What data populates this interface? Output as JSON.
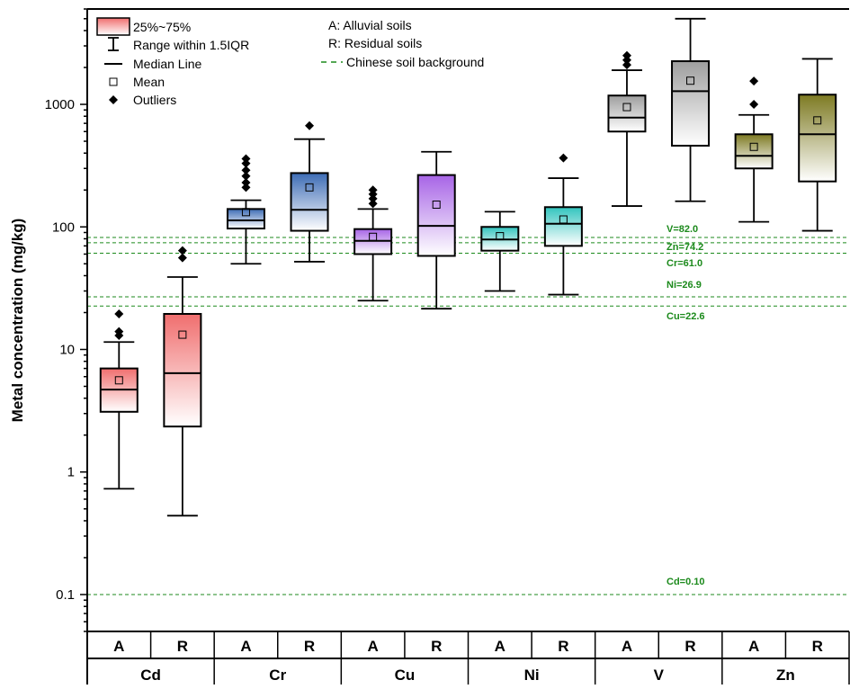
{
  "chart_data": {
    "type": "boxplot",
    "y_scale": "log",
    "ylim": [
      0.05,
      6000
    ],
    "ylabel": "Metal concentration (mg/kg)",
    "y_ticks": [
      {
        "value": 0.1,
        "label": "0.1"
      },
      {
        "value": 1,
        "label": "1"
      },
      {
        "value": 10,
        "label": "10"
      },
      {
        "value": 100,
        "label": "100"
      },
      {
        "value": 1000,
        "label": "1000"
      }
    ],
    "legend": {
      "items": [
        {
          "kind": "box",
          "label": "25%~75%"
        },
        {
          "kind": "whisker",
          "label": "Range within 1.5IQR"
        },
        {
          "kind": "median",
          "label": "Median Line"
        },
        {
          "kind": "mean",
          "label": "Mean"
        },
        {
          "kind": "outlier",
          "label": "Outliers"
        }
      ],
      "notes": [
        {
          "kind": "text",
          "label": "A: Alluvial soils"
        },
        {
          "kind": "text",
          "label": "R: Residual soils"
        },
        {
          "kind": "dashed",
          "label": "Chinese soil background"
        }
      ]
    },
    "groups": [
      {
        "metal": "Cd",
        "color": "#f06e6e",
        "boxes": [
          {
            "soil": "A",
            "min": 0.73,
            "q1": 3.1,
            "median": 4.7,
            "q3": 7.0,
            "max": 11.5,
            "mean": 5.6,
            "outliers": [
              13,
              14,
              19.5
            ]
          },
          {
            "soil": "R",
            "min": 0.44,
            "q1": 2.35,
            "median": 6.4,
            "q3": 19.5,
            "max": 39,
            "mean": 13.2,
            "outliers": [
              56,
              64
            ]
          }
        ]
      },
      {
        "metal": "Cr",
        "color": "#3d6cb5",
        "boxes": [
          {
            "soil": "A",
            "min": 50,
            "q1": 97,
            "median": 113,
            "q3": 140,
            "max": 165,
            "mean": 132,
            "outliers": [
              210,
              230,
              260,
              290,
              330,
              360
            ]
          },
          {
            "soil": "R",
            "min": 52,
            "q1": 93,
            "median": 138,
            "q3": 275,
            "max": 520,
            "mean": 210,
            "outliers": [
              670
            ]
          }
        ]
      },
      {
        "metal": "Cu",
        "color": "#a764e6",
        "boxes": [
          {
            "soil": "A",
            "min": 25,
            "q1": 60,
            "median": 77,
            "q3": 96,
            "max": 140,
            "mean": 83,
            "outliers": [
              155,
              170,
              185,
              200
            ]
          },
          {
            "soil": "R",
            "min": 21.5,
            "q1": 58,
            "median": 102,
            "q3": 265,
            "max": 410,
            "mean": 152,
            "outliers": []
          }
        ]
      },
      {
        "metal": "Ni",
        "color": "#32c4be",
        "boxes": [
          {
            "soil": "A",
            "min": 30,
            "q1": 64,
            "median": 79,
            "q3": 100,
            "max": 133,
            "mean": 84,
            "outliers": []
          },
          {
            "soil": "R",
            "min": 28,
            "q1": 70,
            "median": 106,
            "q3": 145,
            "max": 250,
            "mean": 115,
            "outliers": [
              365
            ]
          }
        ]
      },
      {
        "metal": "V",
        "color": "#9e9e9e",
        "boxes": [
          {
            "soil": "A",
            "min": 148,
            "q1": 600,
            "median": 780,
            "q3": 1180,
            "max": 1900,
            "mean": 950,
            "outliers": [
              2100,
              2300,
              2500
            ]
          },
          {
            "soil": "R",
            "min": 162,
            "q1": 460,
            "median": 1280,
            "q3": 2250,
            "max": 5000,
            "mean": 1560,
            "outliers": []
          }
        ]
      },
      {
        "metal": "Zn",
        "color": "#7d7a22",
        "boxes": [
          {
            "soil": "A",
            "min": 110,
            "q1": 300,
            "median": 380,
            "q3": 570,
            "max": 820,
            "mean": 450,
            "outliers": [
              1000,
              1550
            ]
          },
          {
            "soil": "R",
            "min": 93,
            "q1": 235,
            "median": 570,
            "q3": 1200,
            "max": 2350,
            "mean": 740,
            "outliers": []
          }
        ]
      }
    ],
    "reference_lines": [
      {
        "label": "V=82.0",
        "value": 82.0
      },
      {
        "label": "Zn=74.2",
        "value": 74.2
      },
      {
        "label": "Cr=61.0",
        "value": 61.0
      },
      {
        "label": "Ni=26.9",
        "value": 26.9
      },
      {
        "label": "Cu=22.6",
        "value": 22.6
      },
      {
        "label": "Cd=0.10",
        "value": 0.1
      }
    ],
    "colors": {
      "reference": "#1c8a1c",
      "axis": "#000000"
    }
  }
}
